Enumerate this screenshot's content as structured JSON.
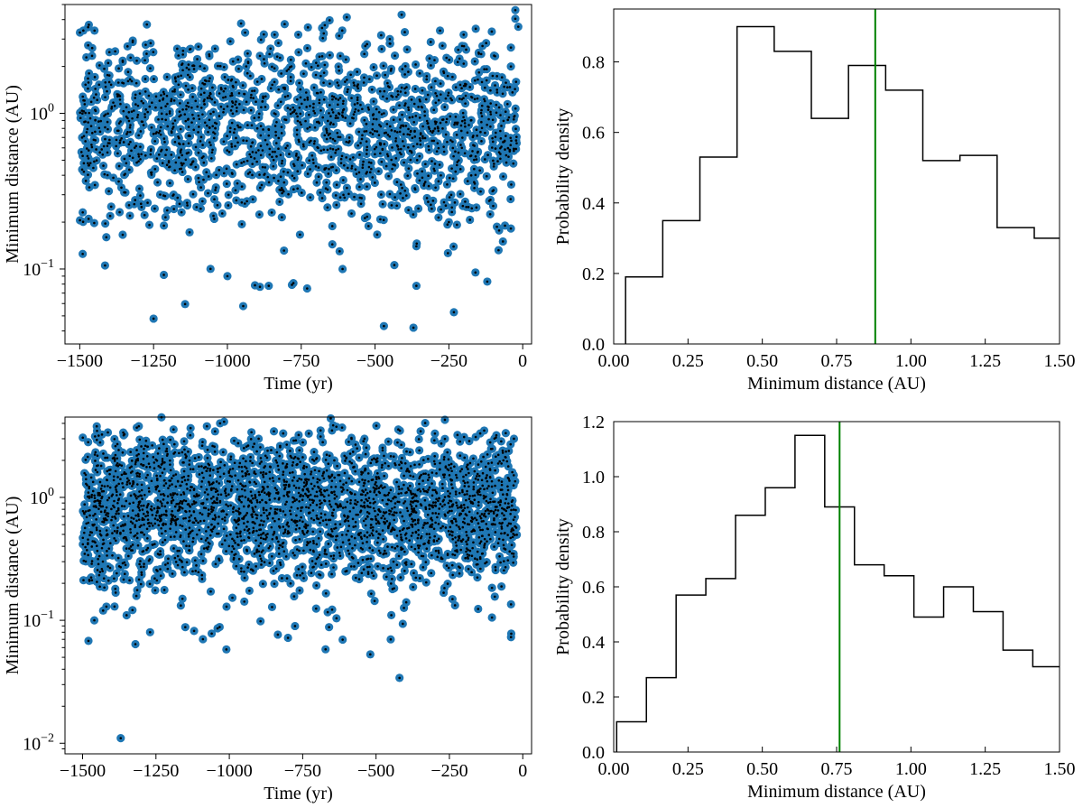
{
  "colors": {
    "marker_fill": "#1f77b4",
    "marker_core": "#000000",
    "histogram_line": "#000000",
    "median_line": "#008000",
    "axes": "#000000"
  },
  "chart_data": [
    {
      "id": "top-left",
      "type": "scatter",
      "xlabel": "Time (yr)",
      "ylabel": "Minimum distance (AU)",
      "xlim": [
        -1550,
        30
      ],
      "ylim": [
        0.033,
        5.0
      ],
      "yscale": "log",
      "xticks": [
        -1500,
        -1250,
        -1000,
        -750,
        -500,
        -250,
        0
      ],
      "xtick_labels": [
        "−1500",
        "−1250",
        "−1000",
        "−750",
        "−500",
        "−250",
        "0"
      ],
      "yticks": [
        0.1,
        1
      ],
      "ytick_base": "10",
      "ytick_exponents": [
        "−1",
        "0"
      ],
      "grid": false,
      "marker_style": "blue circle with black dot",
      "points_note": "about 1500 close approaches; bulk between 0.3 and 2 AU",
      "points_listed": [
        [
          -1490,
          0.125
        ],
        [
          -1470,
          0.21
        ],
        [
          -1450,
          3.4
        ],
        [
          -1410,
          0.16
        ],
        [
          -1380,
          2.5
        ],
        [
          -1330,
          0.22
        ],
        [
          -1250,
          0.048
        ],
        [
          -1215,
          0.19
        ],
        [
          -1170,
          2.6
        ],
        [
          -1000,
          0.09
        ],
        [
          -990,
          2.9
        ],
        [
          -940,
          3.3
        ],
        [
          -860,
          0.078
        ],
        [
          -840,
          3.2
        ],
        [
          -760,
          3.2
        ],
        [
          -730,
          0.075
        ],
        [
          -620,
          0.13
        ],
        [
          -610,
          0.1
        ],
        [
          -470,
          0.043
        ],
        [
          -450,
          3.0
        ],
        [
          -410,
          4.3
        ],
        [
          -370,
          0.042
        ],
        [
          -360,
          0.078
        ],
        [
          -360,
          0.14
        ],
        [
          -280,
          3.4
        ],
        [
          -250,
          0.2
        ],
        [
          -200,
          3.2
        ],
        [
          -160,
          0.095
        ],
        [
          -120,
          0.083
        ],
        [
          -60,
          0.19
        ],
        [
          -40,
          2.0
        ],
        [
          -25,
          4.6
        ],
        [
          -15,
          3.6
        ]
      ]
    },
    {
      "id": "top-right",
      "type": "histogram",
      "xlabel": "Minimum distance (AU)",
      "ylabel": "Probability density",
      "xlim": [
        0.0,
        1.5
      ],
      "ylim": [
        0.0,
        0.95
      ],
      "xticks": [
        0.0,
        0.25,
        0.5,
        0.75,
        1.0,
        1.25,
        1.5
      ],
      "xtick_labels": [
        "0.00",
        "0.25",
        "0.50",
        "0.75",
        "1.00",
        "1.25",
        "1.50"
      ],
      "yticks": [
        0.0,
        0.2,
        0.4,
        0.6,
        0.8
      ],
      "ytick_labels": [
        "0.0",
        "0.2",
        "0.4",
        "0.6",
        "0.8"
      ],
      "bin_edges": [
        0.04,
        0.165,
        0.29,
        0.415,
        0.54,
        0.665,
        0.79,
        0.915,
        1.04,
        1.165,
        1.29,
        1.415,
        1.54
      ],
      "values": [
        0.19,
        0.35,
        0.53,
        0.9,
        0.83,
        0.64,
        0.79,
        0.72,
        0.52,
        0.535,
        0.33,
        0.3
      ],
      "vline": 0.88,
      "grid": false
    },
    {
      "id": "bottom-left",
      "type": "scatter",
      "xlabel": "Time (yr)",
      "ylabel": "Minimum distance (AU)",
      "xlim": [
        -1560,
        30
      ],
      "ylim": [
        0.0082,
        4.5
      ],
      "yscale": "log",
      "xticks": [
        -1500,
        -1250,
        -1000,
        -750,
        -500,
        -250,
        0
      ],
      "xtick_labels": [
        "−1500",
        "−1250",
        "−1000",
        "−750",
        "−500",
        "−250",
        "0"
      ],
      "yticks": [
        0.01,
        0.1,
        1
      ],
      "ytick_base": "10",
      "ytick_exponents": [
        "−2",
        "−1",
        "0"
      ],
      "grid": false,
      "marker_style": "blue circle with black dot",
      "points_note": "about 2500 close approaches; bulk between 0.25 and 2 AU",
      "points_listed": [
        [
          -1480,
          0.068
        ],
        [
          -1460,
          0.1
        ],
        [
          -1430,
          0.12
        ],
        [
          -1370,
          0.011
        ],
        [
          -1360,
          3.2
        ],
        [
          -1350,
          0.11
        ],
        [
          -1320,
          0.064
        ],
        [
          -1300,
          2.6
        ],
        [
          -1270,
          0.08
        ],
        [
          -1150,
          0.088
        ],
        [
          -1120,
          0.082
        ],
        [
          -1060,
          0.078
        ],
        [
          -1040,
          0.086
        ],
        [
          -1010,
          0.058
        ],
        [
          -900,
          3.0
        ],
        [
          -800,
          0.072
        ],
        [
          -660,
          0.088
        ],
        [
          -650,
          3.5
        ],
        [
          -450,
          0.07
        ],
        [
          -420,
          0.034
        ],
        [
          -200,
          3.1
        ],
        [
          -90,
          3.2
        ],
        [
          -40,
          0.073
        ],
        [
          -30,
          3.0
        ]
      ]
    },
    {
      "id": "bottom-right",
      "type": "histogram",
      "xlabel": "Minimum distance (AU)",
      "ylabel": "Probability density",
      "xlim": [
        0.0,
        1.5
      ],
      "ylim": [
        0.0,
        1.2
      ],
      "xticks": [
        0.0,
        0.25,
        0.5,
        0.75,
        1.0,
        1.25,
        1.5
      ],
      "xtick_labels": [
        "0.00",
        "0.25",
        "0.50",
        "0.75",
        "1.00",
        "1.25",
        "1.50"
      ],
      "yticks": [
        0.0,
        0.2,
        0.4,
        0.6,
        0.8,
        1.0,
        1.2
      ],
      "ytick_labels": [
        "0.0",
        "0.2",
        "0.4",
        "0.6",
        "0.8",
        "1.0",
        "1.2"
      ],
      "bin_edges": [
        0.01,
        0.11,
        0.21,
        0.31,
        0.41,
        0.51,
        0.61,
        0.71,
        0.81,
        0.91,
        1.01,
        1.11,
        1.21,
        1.31,
        1.41,
        1.51
      ],
      "values": [
        0.11,
        0.27,
        0.57,
        0.63,
        0.86,
        0.96,
        1.15,
        0.89,
        0.68,
        0.64,
        0.49,
        0.6,
        0.51,
        0.37,
        0.31
      ],
      "vline": 0.76,
      "grid": false
    }
  ]
}
